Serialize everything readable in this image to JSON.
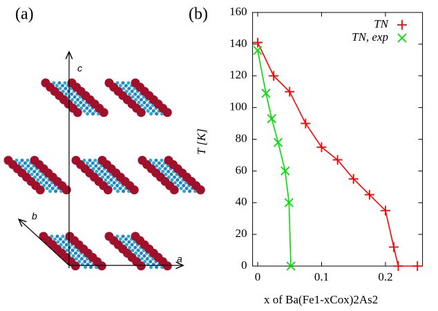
{
  "panels": [
    "(a)",
    "(b)"
  ],
  "structure_axes": [
    "c",
    "b",
    "a"
  ],
  "chart_data": {
    "type": "line",
    "xlabel": "x of Ba(Fe1-xCox)2As2",
    "ylabel": "T [K]",
    "xlim": [
      -0.008,
      0.258
    ],
    "xticks": [
      0,
      0.1,
      0.2
    ],
    "ylim": [
      0,
      160
    ],
    "yticks": [
      0,
      20,
      40,
      60,
      80,
      100,
      120,
      140,
      160
    ],
    "grid": false,
    "legend": "upper right",
    "series": [
      {
        "name": "TN",
        "color": "#ff0000",
        "marker": "+",
        "x": [
          0,
          0.025,
          0.05,
          0.075,
          0.1,
          0.125,
          0.15,
          0.175,
          0.2,
          0.213,
          0.22,
          0.25
        ],
        "values": [
          141,
          120,
          110,
          90,
          75,
          67,
          55,
          45,
          35,
          12,
          0,
          0
        ]
      },
      {
        "name": "TN, exp",
        "color": "#00dd00",
        "marker": "x",
        "x": [
          0,
          0.013,
          0.022,
          0.032,
          0.043,
          0.049,
          0.052
        ],
        "values": [
          136,
          109,
          93,
          78,
          60,
          40,
          0
        ]
      }
    ]
  }
}
